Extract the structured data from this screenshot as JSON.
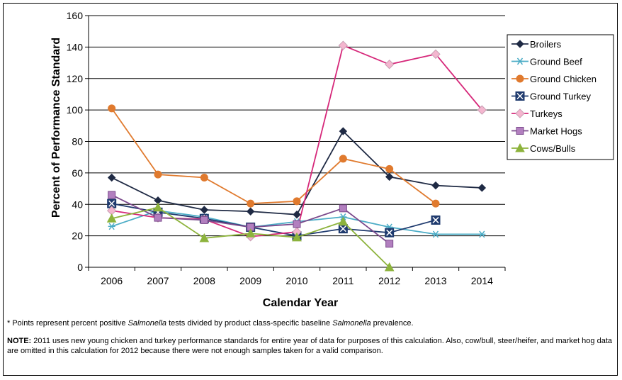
{
  "chart_data": {
    "type": "line",
    "xlabel": "Calendar Year",
    "ylabel": "Percent of Performance Standard",
    "ylim": [
      0,
      160
    ],
    "yticks": [
      0,
      20,
      40,
      60,
      80,
      100,
      120,
      140,
      160
    ],
    "categories": [
      "2006",
      "2007",
      "2008",
      "2009",
      "2010",
      "2011",
      "2012",
      "2013",
      "2014"
    ],
    "grid": "horizontal",
    "legend_position": "right",
    "series": [
      {
        "name": "Broilers",
        "color": "#1f2a44",
        "marker": "diamond",
        "values": [
          57,
          42.5,
          36.5,
          35.5,
          33.5,
          86.5,
          57.5,
          52,
          50.5
        ]
      },
      {
        "name": "Ground Beef",
        "color": "#4bacc6",
        "marker": "asterisk",
        "values": [
          26,
          36,
          32,
          25.5,
          29,
          32,
          25.5,
          21,
          21
        ]
      },
      {
        "name": "Ground Chicken",
        "color": "#e07a2e",
        "marker": "circle",
        "values": [
          101,
          59,
          57,
          40.5,
          42,
          69,
          62.5,
          40.5,
          null
        ]
      },
      {
        "name": "Ground Turkey",
        "color": "#1f3a6e",
        "marker": "xsquare",
        "values": [
          40.5,
          35,
          31,
          25.5,
          20,
          24.5,
          22,
          30,
          null
        ]
      },
      {
        "name": "Turkeys",
        "color": "#d6287a",
        "marker": "diamond-light",
        "values": [
          36,
          31.5,
          30.5,
          19.5,
          22.5,
          141,
          129,
          135.5,
          100
        ]
      },
      {
        "name": "Market Hogs",
        "color": "#7b4a8c",
        "marker": "square",
        "values": [
          46,
          31.5,
          30,
          25.5,
          27.5,
          37.5,
          15,
          null,
          null
        ]
      },
      {
        "name": "Cows/Bulls",
        "color": "#8db33c",
        "marker": "triangle",
        "values": [
          31,
          38,
          18.5,
          21.5,
          19,
          29,
          0,
          null,
          null
        ]
      }
    ]
  },
  "footnote": {
    "prefix": "* Points represent percent positive ",
    "italic1": "Salmonella",
    "middle": " tests divided by product class-specific baseline ",
    "italic2": "Salmonella",
    "suffix": " prevalence."
  },
  "note": {
    "label": "NOTE:",
    "text": " 2011 uses new young chicken and turkey performance standards for entire year of data for purposes of this calculation.  Also, cow/bull, steer/heifer, and market hog data are omitted in this calculation for 2012 because there were not enough samples taken for a valid comparison."
  }
}
